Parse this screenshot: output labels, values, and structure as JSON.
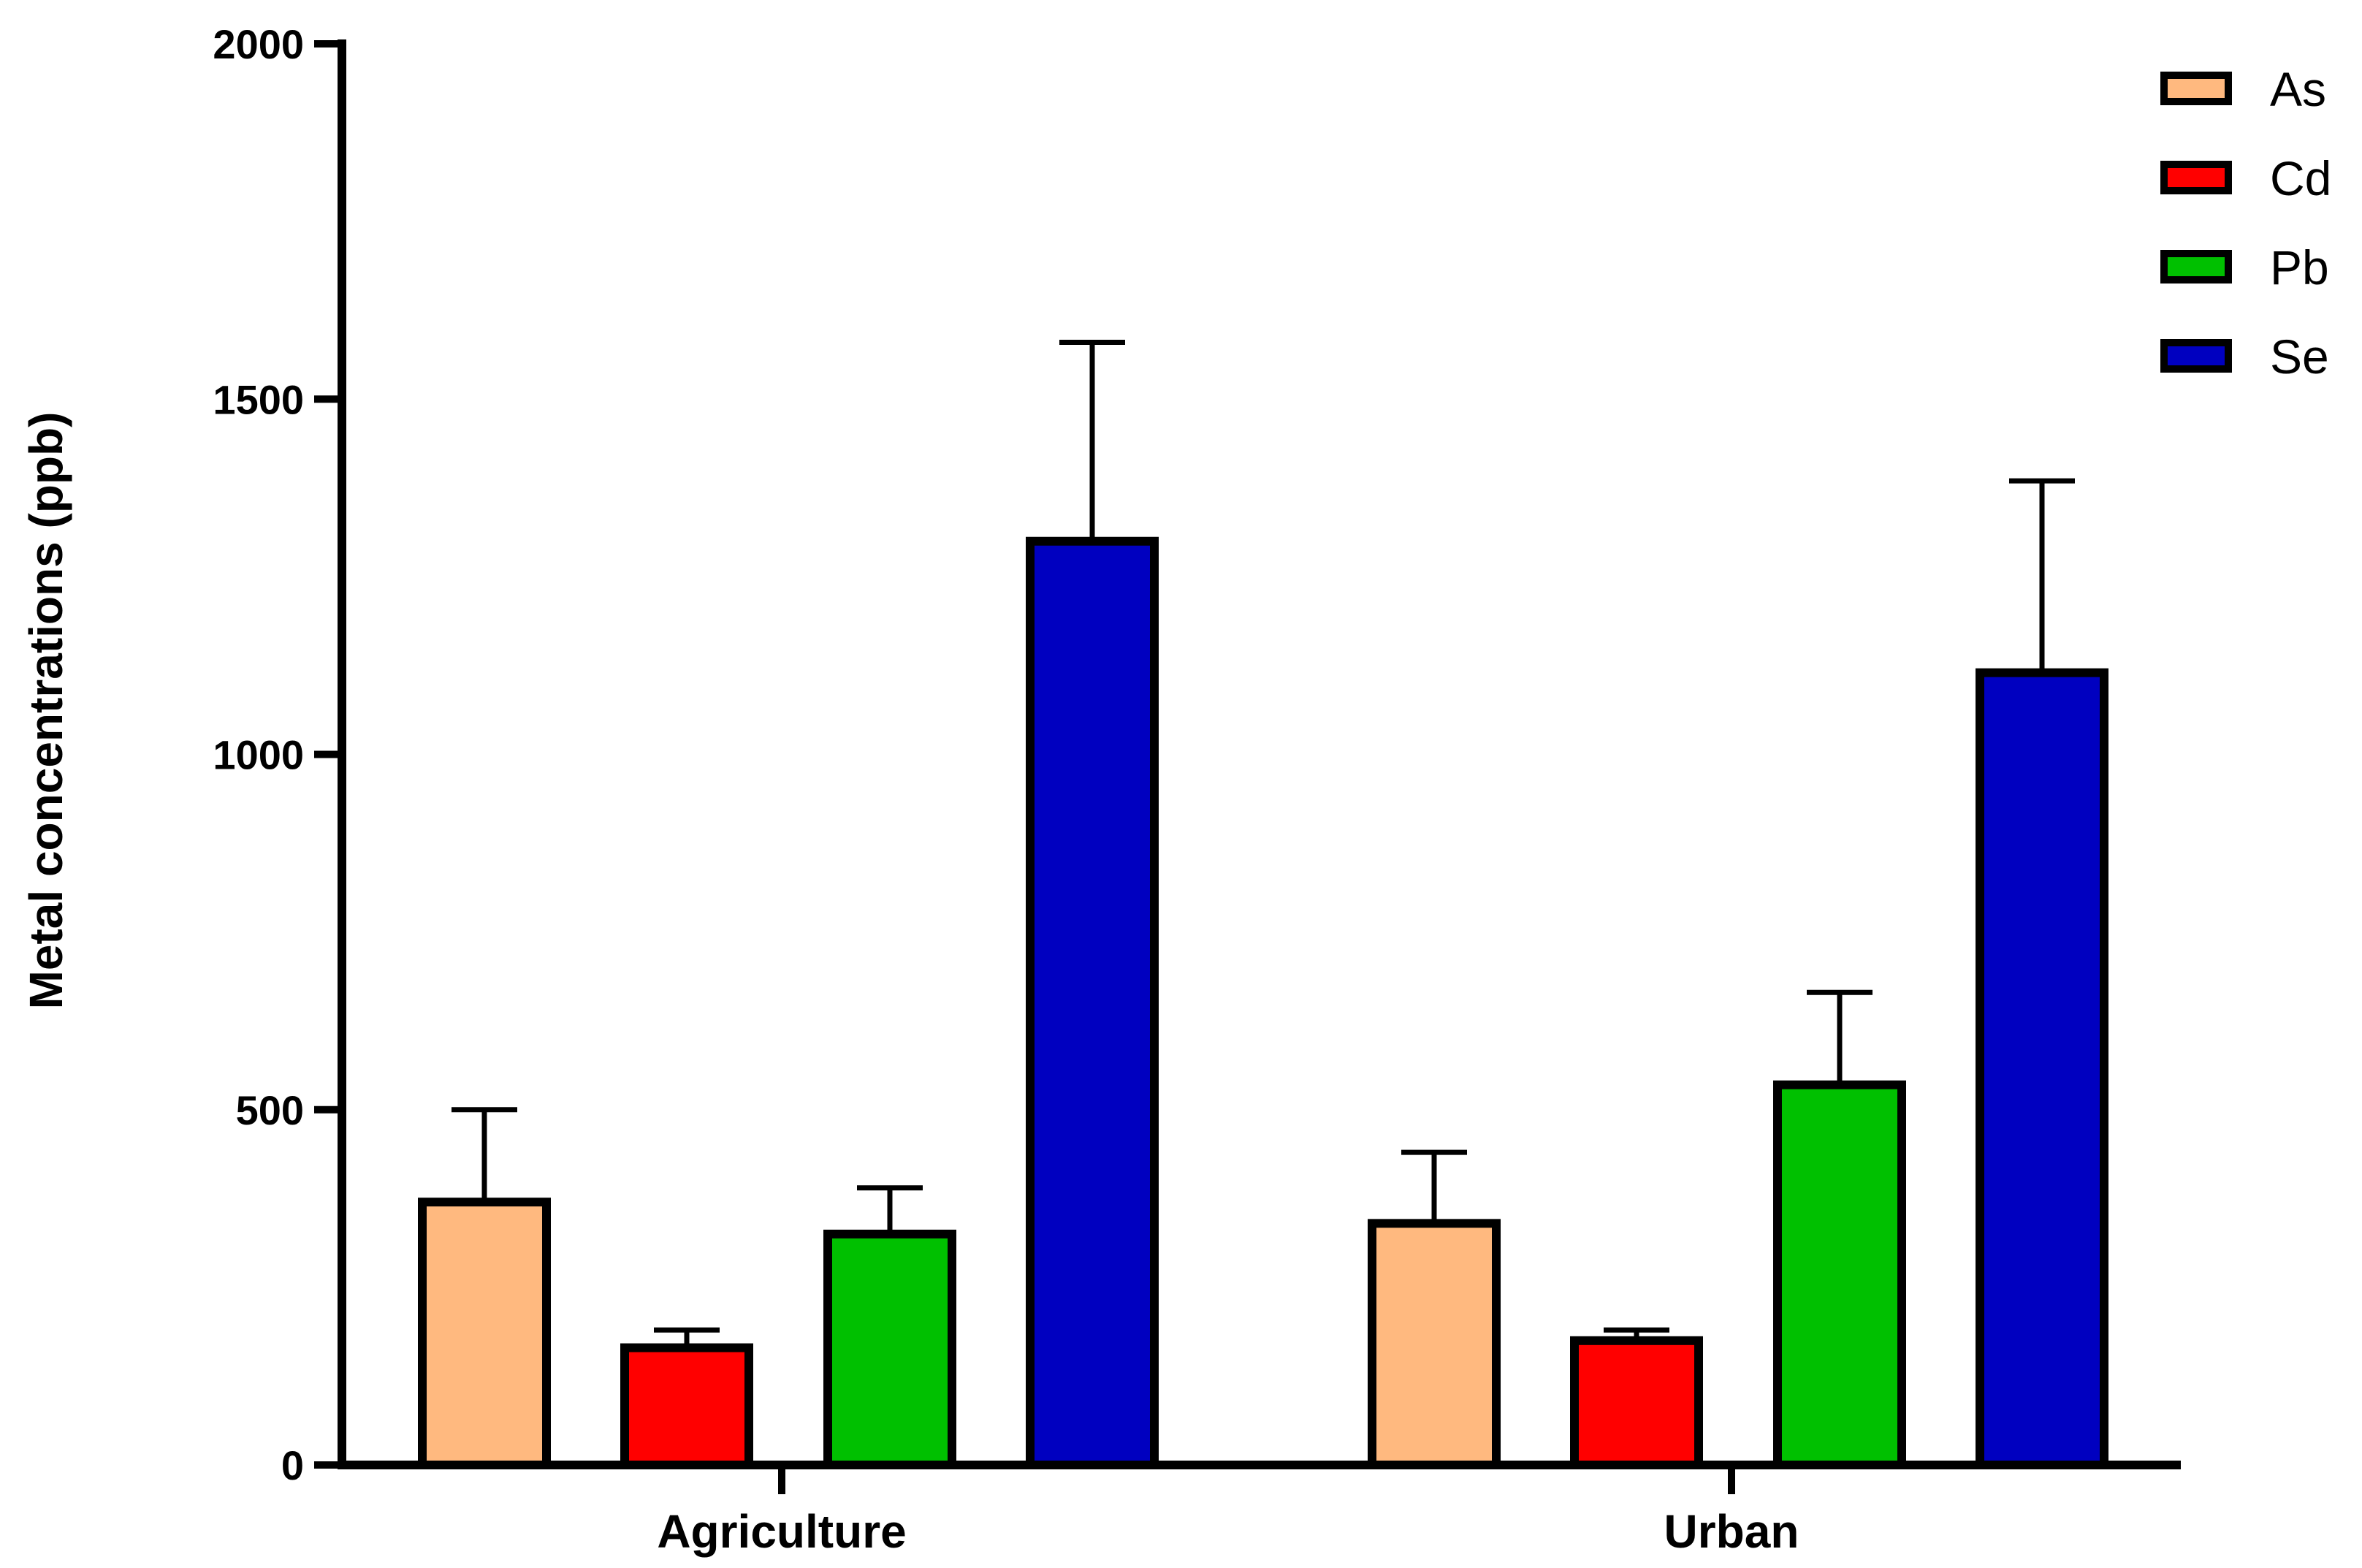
{
  "chart_data": {
    "type": "bar",
    "title": "",
    "xlabel": "",
    "ylabel": "Metal concentrations (ppb)",
    "categories": [
      "Agriculture",
      "Urban"
    ],
    "ylim": [
      0,
      2000
    ],
    "yticks": [
      0,
      500,
      1000,
      1500,
      2000
    ],
    "legend_position": "top-right",
    "grid": false,
    "series": [
      {
        "name": "As",
        "color": "#FFB97F",
        "values": [
          370,
          340
        ],
        "errors": [
          130,
          100
        ]
      },
      {
        "name": "Cd",
        "color": "#FF0000",
        "values": [
          165,
          175
        ],
        "errors": [
          25,
          15
        ]
      },
      {
        "name": "Pb",
        "color": "#00C000",
        "values": [
          325,
          535
        ],
        "errors": [
          65,
          130
        ]
      },
      {
        "name": "Se",
        "color": "#0000C0",
        "values": [
          1300,
          1115
        ],
        "errors": [
          280,
          270
        ]
      }
    ]
  }
}
